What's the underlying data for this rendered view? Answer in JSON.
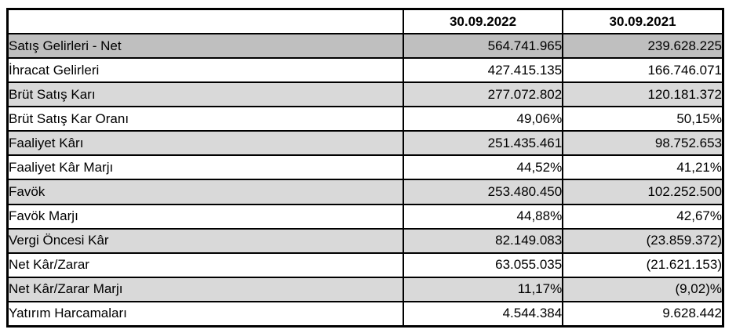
{
  "table": {
    "title": "Financial results comparison table",
    "header": {
      "label": "",
      "col2022": "30.09.2022",
      "col2021": "30.09.2021"
    },
    "colors": {
      "dark_row_bg": "#bfbfbf",
      "light_row_bg": "#d9d9d9",
      "white_row_bg": "#ffffff",
      "border": "#000000",
      "text": "#000000"
    },
    "rows": [
      {
        "label": "Satış Gelirleri - Net",
        "v2022": "564.741.965",
        "v2021": "239.628.225",
        "shade": "dark"
      },
      {
        "label": "İhracat Gelirleri",
        "v2022": "427.415.135",
        "v2021": "166.746.071",
        "shade": "none"
      },
      {
        "label": "Brüt Satış Karı",
        "v2022": "277.072.802",
        "v2021": "120.181.372",
        "shade": "light"
      },
      {
        "label": "Brüt Satış Kar Oranı",
        "v2022": "49,06%",
        "v2021": "50,15%",
        "shade": "none"
      },
      {
        "label": "Faaliyet Kârı",
        "v2022": "251.435.461",
        "v2021": "98.752.653",
        "shade": "light"
      },
      {
        "label": "Faaliyet Kâr Marjı",
        "v2022": "44,52%",
        "v2021": "41,21%",
        "shade": "none"
      },
      {
        "label": "Favök",
        "v2022": "253.480.450",
        "v2021": "102.252.500",
        "shade": "light"
      },
      {
        "label": "Favök Marjı",
        "v2022": "44,88%",
        "v2021": "42,67%",
        "shade": "none"
      },
      {
        "label": "Vergi Öncesi Kâr",
        "v2022": "82.149.083",
        "v2021": "(23.859.372)",
        "shade": "light"
      },
      {
        "label": "Net Kâr/Zarar",
        "v2022": "63.055.035",
        "v2021": "(21.621.153)",
        "shade": "none"
      },
      {
        "label": "Net Kâr/Zarar Marjı",
        "v2022": "11,17%",
        "v2021": "(9,02)%",
        "shade": "light"
      },
      {
        "label": "Yatırım Harcamaları",
        "v2022": "4.544.384",
        "v2021": "9.628.442",
        "shade": "none"
      }
    ]
  }
}
